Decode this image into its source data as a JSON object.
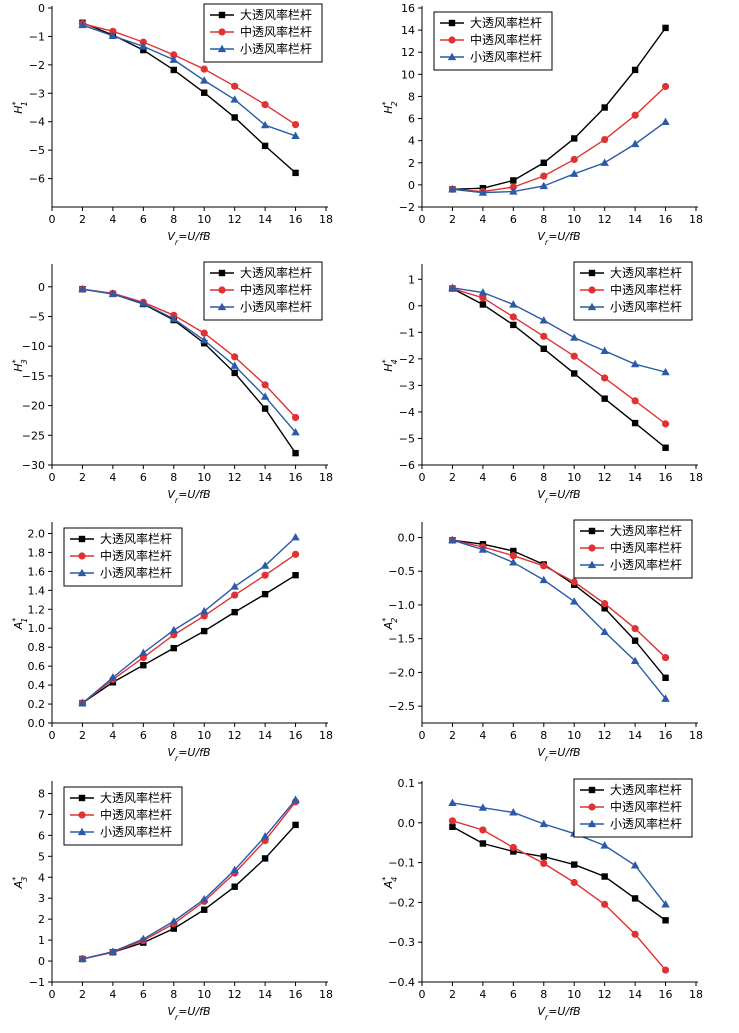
{
  "colors": {
    "large": "#000000",
    "medium": "#e03232",
    "small": "#2b5aa8"
  },
  "legend_labels": [
    "大透风率栏杆",
    "中透风率栏杆",
    "小透风率栏杆"
  ],
  "chart_data": [
    {
      "type": "line",
      "ylabel": {
        "base": "H",
        "sup": "*",
        "sub": "1"
      },
      "xlabel": {
        "v": "V",
        "sub": "r",
        "rest": "=U/fB"
      },
      "xlim": [
        0,
        18
      ],
      "ylim": [
        -7,
        0
      ],
      "xticks": [
        0,
        2,
        4,
        6,
        8,
        10,
        12,
        14,
        16,
        18
      ],
      "yticks": [
        0,
        -1,
        -2,
        -3,
        -4,
        -5,
        -6
      ],
      "yticklabels": [
        "0",
        "−1",
        "−2",
        "−3",
        "−4",
        "−5",
        "−6"
      ],
      "legend_position": "top-right",
      "x": [
        2,
        4,
        6,
        8,
        10,
        12,
        14,
        16
      ],
      "series": [
        {
          "name": "大透风率栏杆",
          "marker": "square",
          "values": [
            -0.52,
            -0.95,
            -1.48,
            -2.18,
            -2.98,
            -3.85,
            -4.85,
            -5.8
          ]
        },
        {
          "name": "中透风率栏杆",
          "marker": "circle",
          "values": [
            -0.55,
            -0.82,
            -1.2,
            -1.65,
            -2.15,
            -2.75,
            -3.4,
            -4.1
          ]
        },
        {
          "name": "小透风率栏杆",
          "marker": "triangle",
          "values": [
            -0.6,
            -0.98,
            -1.35,
            -1.82,
            -2.55,
            -3.22,
            -4.12,
            -4.5
          ]
        }
      ]
    },
    {
      "type": "line",
      "ylabel": {
        "base": "H",
        "sup": "*",
        "sub": "2"
      },
      "xlabel": {
        "v": "V",
        "sub": "r",
        "rest": "=U/fB"
      },
      "xlim": [
        0,
        18
      ],
      "ylim": [
        -2,
        16
      ],
      "xticks": [
        0,
        2,
        4,
        6,
        8,
        10,
        12,
        14,
        16,
        18
      ],
      "yticks": [
        16,
        14,
        12,
        10,
        8,
        6,
        4,
        2,
        0,
        -2
      ],
      "yticklabels": [
        "16",
        "14",
        "12",
        "10",
        "8",
        "6",
        "4",
        "2",
        "0",
        "−2"
      ],
      "legend_position": "top-left",
      "x": [
        2,
        4,
        6,
        8,
        10,
        12,
        14,
        16
      ],
      "series": [
        {
          "name": "大透风率栏杆",
          "marker": "square",
          "values": [
            -0.4,
            -0.3,
            0.4,
            2.0,
            4.2,
            7.0,
            10.4,
            14.2
          ]
        },
        {
          "name": "中透风率栏杆",
          "marker": "circle",
          "values": [
            -0.4,
            -0.6,
            -0.2,
            0.8,
            2.3,
            4.1,
            6.3,
            8.9
          ]
        },
        {
          "name": "小透风率栏杆",
          "marker": "triangle",
          "values": [
            -0.4,
            -0.7,
            -0.6,
            -0.1,
            1.0,
            2.0,
            3.7,
            5.7
          ]
        }
      ]
    },
    {
      "type": "line",
      "ylabel": {
        "base": "H",
        "sup": "*",
        "sub": "3"
      },
      "xlabel": {
        "v": "V",
        "sub": "r",
        "rest": "=U/fB"
      },
      "xlim": [
        0,
        18
      ],
      "ylim": [
        -30,
        3.5
      ],
      "xticks": [
        0,
        2,
        4,
        6,
        8,
        10,
        12,
        14,
        16,
        18
      ],
      "yticks": [
        0,
        -5,
        -10,
        -15,
        -20,
        -25,
        -30
      ],
      "yticklabels": [
        "0",
        "−5",
        "−10",
        "−15",
        "−20",
        "−25",
        "−30"
      ],
      "legend_position": "top-right",
      "x": [
        2,
        4,
        6,
        8,
        10,
        12,
        14,
        16
      ],
      "series": [
        {
          "name": "大透风率栏杆",
          "marker": "square",
          "values": [
            -0.4,
            -1.2,
            -2.9,
            -5.6,
            -9.5,
            -14.5,
            -20.5,
            -28.0
          ]
        },
        {
          "name": "中透风率栏杆",
          "marker": "circle",
          "values": [
            -0.4,
            -1.1,
            -2.6,
            -4.8,
            -7.8,
            -11.8,
            -16.5,
            -22.0
          ]
        },
        {
          "name": "小透风率栏杆",
          "marker": "triangle",
          "values": [
            -0.4,
            -1.2,
            -2.8,
            -5.4,
            -9.0,
            -13.3,
            -18.5,
            -24.5
          ]
        }
      ]
    },
    {
      "type": "line",
      "ylabel": {
        "base": "H",
        "sup": "*",
        "sub": "4"
      },
      "xlabel": {
        "v": "V",
        "sub": "r",
        "rest": "=U/fB"
      },
      "xlim": [
        0,
        18
      ],
      "ylim": [
        -6,
        1.5
      ],
      "xticks": [
        0,
        2,
        4,
        6,
        8,
        10,
        12,
        14,
        16,
        18
      ],
      "yticks": [
        1,
        0,
        -1,
        -2,
        -3,
        -4,
        -5,
        -6
      ],
      "yticklabels": [
        "1",
        "0",
        "−1",
        "−2",
        "−3",
        "−4",
        "−5",
        "−6"
      ],
      "legend_position": "top-right",
      "x": [
        2,
        4,
        6,
        8,
        10,
        12,
        14,
        16
      ],
      "series": [
        {
          "name": "大透风率栏杆",
          "marker": "square",
          "values": [
            0.65,
            0.05,
            -0.72,
            -1.62,
            -2.55,
            -3.5,
            -4.42,
            -5.35
          ]
        },
        {
          "name": "中透风率栏杆",
          "marker": "circle",
          "values": [
            0.65,
            0.3,
            -0.42,
            -1.15,
            -1.9,
            -2.72,
            -3.58,
            -4.45
          ]
        },
        {
          "name": "小透风率栏杆",
          "marker": "triangle",
          "values": [
            0.68,
            0.5,
            0.05,
            -0.55,
            -1.2,
            -1.7,
            -2.2,
            -2.5
          ]
        }
      ]
    },
    {
      "type": "line",
      "ylabel": {
        "base": "A",
        "sup": "*",
        "sub": "1"
      },
      "xlabel": {
        "v": "V",
        "sub": "r",
        "rest": "=U/fB"
      },
      "xlim": [
        0,
        18
      ],
      "ylim": [
        0,
        2.1
      ],
      "xticks": [
        0,
        2,
        4,
        6,
        8,
        10,
        12,
        14,
        16,
        18
      ],
      "yticks": [
        2.0,
        1.8,
        1.6,
        1.4,
        1.2,
        1.0,
        0.8,
        0.6,
        0.4,
        0.2,
        0.0
      ],
      "yticklabels": [
        "2.0",
        "1.8",
        "1.6",
        "1.4",
        "1.2",
        "1.0",
        "0.8",
        "0.6",
        "0.4",
        "0.2",
        "0.0"
      ],
      "legend_position": "top-left",
      "x": [
        2,
        4,
        6,
        8,
        10,
        12,
        14,
        16
      ],
      "series": [
        {
          "name": "大透风率栏杆",
          "marker": "square",
          "values": [
            0.21,
            0.43,
            0.61,
            0.79,
            0.97,
            1.17,
            1.36,
            1.56
          ]
        },
        {
          "name": "中透风率栏杆",
          "marker": "circle",
          "values": [
            0.21,
            0.46,
            0.69,
            0.93,
            1.13,
            1.35,
            1.56,
            1.78
          ]
        },
        {
          "name": "小透风率栏杆",
          "marker": "triangle",
          "values": [
            0.21,
            0.48,
            0.74,
            0.98,
            1.18,
            1.44,
            1.66,
            1.96
          ]
        }
      ]
    },
    {
      "type": "line",
      "ylabel": {
        "base": "A",
        "sup": "*",
        "sub": "2"
      },
      "xlabel": {
        "v": "V",
        "sub": "r",
        "rest": "=U/fB"
      },
      "xlim": [
        0,
        18
      ],
      "ylim": [
        -2.75,
        0.2
      ],
      "xticks": [
        0,
        2,
        4,
        6,
        8,
        10,
        12,
        14,
        16,
        18
      ],
      "yticks": [
        0,
        -0.5,
        -1.0,
        -1.5,
        -2.0,
        -2.5
      ],
      "yticklabels": [
        "0.0",
        "−0.5",
        "−1.0",
        "−1.5",
        "−2.0",
        "−2.5"
      ],
      "legend_position": "top-right",
      "x": [
        2,
        4,
        6,
        8,
        10,
        12,
        14,
        16
      ],
      "series": [
        {
          "name": "大透风率栏杆",
          "marker": "square",
          "values": [
            -0.04,
            -0.1,
            -0.2,
            -0.4,
            -0.7,
            -1.05,
            -1.53,
            -2.08
          ]
        },
        {
          "name": "中透风率栏杆",
          "marker": "circle",
          "values": [
            -0.04,
            -0.14,
            -0.27,
            -0.42,
            -0.66,
            -0.98,
            -1.35,
            -1.78
          ]
        },
        {
          "name": "小透风率栏杆",
          "marker": "triangle",
          "values": [
            -0.04,
            -0.18,
            -0.37,
            -0.63,
            -0.95,
            -1.4,
            -1.83,
            -2.39
          ]
        }
      ]
    },
    {
      "type": "line",
      "ylabel": {
        "base": "A",
        "sup": "*",
        "sub": "3"
      },
      "xlabel": {
        "v": "V",
        "sub": "r",
        "rest": "=U/fB"
      },
      "xlim": [
        0,
        18
      ],
      "ylim": [
        -1,
        8.5
      ],
      "xticks": [
        0,
        2,
        4,
        6,
        8,
        10,
        12,
        14,
        16,
        18
      ],
      "yticks": [
        8,
        7,
        6,
        5,
        4,
        3,
        2,
        1,
        0,
        -1
      ],
      "yticklabels": [
        "8",
        "7",
        "6",
        "5",
        "4",
        "3",
        "2",
        "1",
        "0",
        "−1"
      ],
      "legend_position": "top-left",
      "x": [
        2,
        4,
        6,
        8,
        10,
        12,
        14,
        16
      ],
      "series": [
        {
          "name": "大透风率栏杆",
          "marker": "square",
          "values": [
            0.1,
            0.42,
            0.88,
            1.55,
            2.45,
            3.55,
            4.9,
            6.5
          ]
        },
        {
          "name": "中透风率栏杆",
          "marker": "circle",
          "values": [
            0.1,
            0.42,
            0.98,
            1.78,
            2.85,
            4.2,
            5.75,
            7.6
          ]
        },
        {
          "name": "小透风率栏杆",
          "marker": "triangle",
          "values": [
            0.1,
            0.45,
            1.05,
            1.9,
            2.95,
            4.35,
            5.95,
            7.7
          ]
        }
      ]
    },
    {
      "type": "line",
      "ylabel": {
        "base": "A",
        "sup": "*",
        "sub": "4"
      },
      "xlabel": {
        "v": "V",
        "sub": "r",
        "rest": "=U/fB"
      },
      "xlim": [
        0,
        18
      ],
      "ylim": [
        -0.4,
        0.1
      ],
      "xticks": [
        0,
        2,
        4,
        6,
        8,
        10,
        12,
        14,
        16,
        18
      ],
      "yticks": [
        0.1,
        0,
        -0.1,
        -0.2,
        -0.3,
        -0.4
      ],
      "yticklabels": [
        "0.1",
        "0.0",
        "−0.1",
        "−0.2",
        "−0.3",
        "−0.4"
      ],
      "legend_position": "top-right",
      "x": [
        2,
        4,
        6,
        8,
        10,
        12,
        14,
        16
      ],
      "series": [
        {
          "name": "大透风率栏杆",
          "marker": "square",
          "values": [
            -0.01,
            -0.052,
            -0.072,
            -0.085,
            -0.105,
            -0.135,
            -0.19,
            -0.245
          ]
        },
        {
          "name": "中透风率栏杆",
          "marker": "circle",
          "values": [
            0.005,
            -0.018,
            -0.062,
            -0.102,
            -0.15,
            -0.205,
            -0.28,
            -0.37
          ]
        },
        {
          "name": "小透风率栏杆",
          "marker": "triangle",
          "values": [
            0.05,
            0.038,
            0.026,
            -0.003,
            -0.027,
            -0.057,
            -0.107,
            -0.205
          ]
        }
      ]
    }
  ]
}
